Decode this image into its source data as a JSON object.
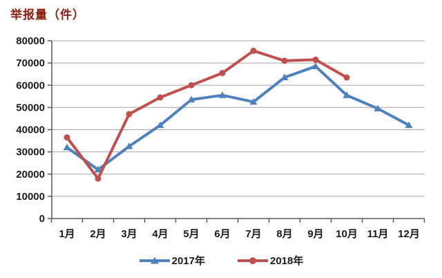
{
  "chart_data": {
    "type": "line",
    "title": "举报量（件）",
    "categories": [
      "1月",
      "2月",
      "3月",
      "4月",
      "5月",
      "6月",
      "7月",
      "8月",
      "9月",
      "10月",
      "11月",
      "12月"
    ],
    "series": [
      {
        "name": "2017年",
        "color": "#4F81BD",
        "marker": "triangle",
        "values": [
          32000,
          22000,
          32500,
          42000,
          53500,
          55500,
          52500,
          63500,
          68500,
          55500,
          49500,
          42000
        ]
      },
      {
        "name": "2018年",
        "color": "#C0504D",
        "marker": "circle",
        "values": [
          36500,
          18000,
          47000,
          54500,
          60000,
          65500,
          75500,
          71000,
          71500,
          63500
        ]
      }
    ],
    "ylim": [
      0,
      80000
    ],
    "y_ticks": [
      0,
      10000,
      20000,
      30000,
      40000,
      50000,
      60000,
      70000,
      80000
    ],
    "grid": "horizontal",
    "legend_position": "bottom",
    "colors": {
      "title": "#8B1E12",
      "axis": "#595959",
      "gridline": "#a6a6a6",
      "tick_label": "#1a1a1a"
    }
  }
}
